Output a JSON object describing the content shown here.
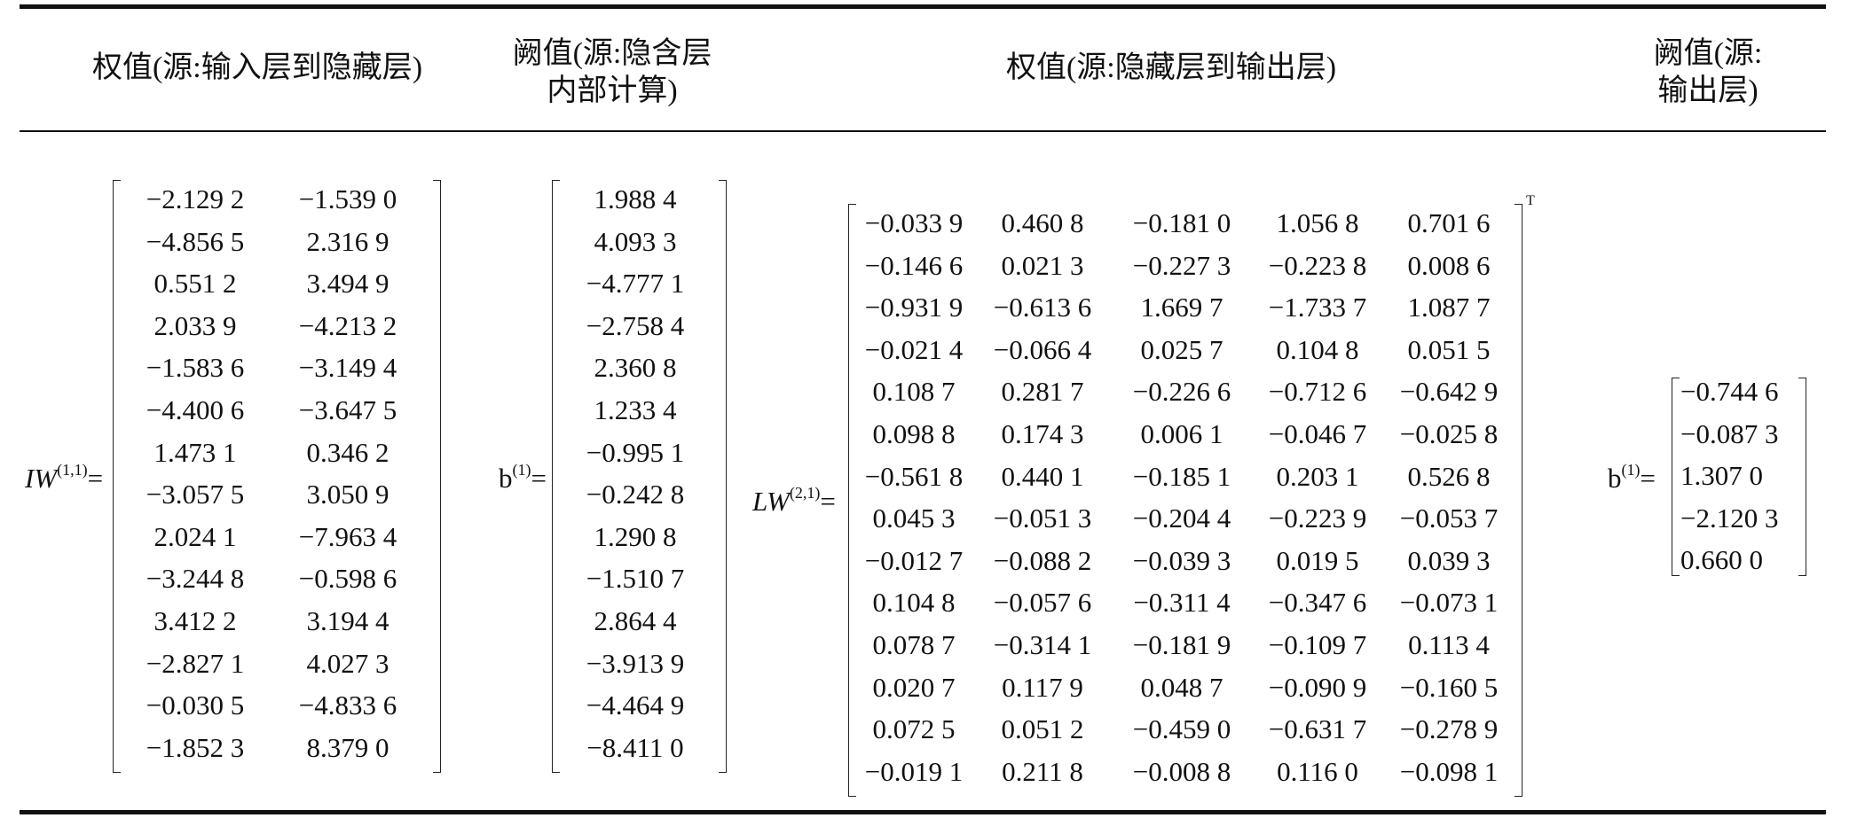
{
  "headers": {
    "col1": "权值(源:输入层到隐藏层)",
    "col2_line1": "阙值(源:隐含层",
    "col2_line2": "内部计算)",
    "col3": "权值(源:隐藏层到输出层)",
    "col4_line1": "阙值(源:",
    "col4_line2": "输出层)"
  },
  "labels": {
    "iw_base": "IW",
    "iw_sup": "(1,1)",
    "b1_base": "b",
    "b1_sup": "(1)",
    "lw_base": "LW",
    "lw_sup": "(2,1)",
    "b2_base": "b",
    "b2_sup": "(1)",
    "equals": "=",
    "transpose": "T"
  },
  "matrices": {
    "IW": [
      [
        "−2.129 2",
        "−1.539 0"
      ],
      [
        "−4.856 5",
        "2.316 9"
      ],
      [
        "0.551 2",
        "3.494 9"
      ],
      [
        "2.033 9",
        "−4.213 2"
      ],
      [
        "−1.583 6",
        "−3.149 4"
      ],
      [
        "−4.400 6",
        "−3.647 5"
      ],
      [
        "1.473 1",
        "0.346 2"
      ],
      [
        "−3.057 5",
        "3.050 9"
      ],
      [
        "2.024 1",
        "−7.963 4"
      ],
      [
        "−3.244 8",
        "−0.598 6"
      ],
      [
        "3.412 2",
        "3.194 4"
      ],
      [
        "−2.827 1",
        "4.027 3"
      ],
      [
        "−0.030 5",
        "−4.833 6"
      ],
      [
        "−1.852 3",
        "8.379 0"
      ]
    ],
    "b1": [
      "1.988 4",
      "4.093 3",
      "−4.777 1",
      "−2.758 4",
      "2.360 8",
      "1.233 4",
      "−0.995 1",
      "−0.242 8",
      "1.290 8",
      "−1.510 7",
      "2.864 4",
      "−3.913 9",
      "−4.464 9",
      "−8.411 0"
    ],
    "LW": [
      [
        "−0.033 9",
        "0.460 8",
        "−0.181 0",
        "1.056 8",
        "0.701 6"
      ],
      [
        "−0.146 6",
        "0.021 3",
        "−0.227 3",
        "−0.223 8",
        "0.008 6"
      ],
      [
        "−0.931 9",
        "−0.613 6",
        "1.669 7",
        "−1.733 7",
        "1.087 7"
      ],
      [
        "−0.021 4",
        "−0.066 4",
        "0.025 7",
        "0.104 8",
        "0.051 5"
      ],
      [
        "0.108 7",
        "0.281 7",
        "−0.226 6",
        "−0.712 6",
        "−0.642 9"
      ],
      [
        "0.098 8",
        "0.174 3",
        "0.006 1",
        "−0.046 7",
        "−0.025 8"
      ],
      [
        "−0.561 8",
        "0.440 1",
        "−0.185 1",
        "0.203 1",
        "0.526 8"
      ],
      [
        "0.045 3",
        "−0.051 3",
        "−0.204 4",
        "−0.223 9",
        "−0.053 7"
      ],
      [
        "−0.012 7",
        "−0.088 2",
        "−0.039 3",
        "0.019 5",
        "0.039 3"
      ],
      [
        "0.104 8",
        "−0.057 6",
        "−0.311 4",
        "−0.347 6",
        "−0.073 1"
      ],
      [
        "0.078 7",
        "−0.314 1",
        "−0.181 9",
        "−0.109 7",
        "0.113 4"
      ],
      [
        "0.020 7",
        "0.117 9",
        "0.048 7",
        "−0.090 9",
        "−0.160 5"
      ],
      [
        "0.072 5",
        "0.051 2",
        "−0.459 0",
        "−0.631 7",
        "−0.278 9"
      ],
      [
        "−0.019 1",
        "0.211 8",
        "−0.008 8",
        "0.116 0",
        "−0.098 1"
      ]
    ],
    "b2": [
      "−0.744 6",
      "−0.087 3",
      "1.307 0",
      "−2.120 3",
      "0.660 0"
    ]
  }
}
